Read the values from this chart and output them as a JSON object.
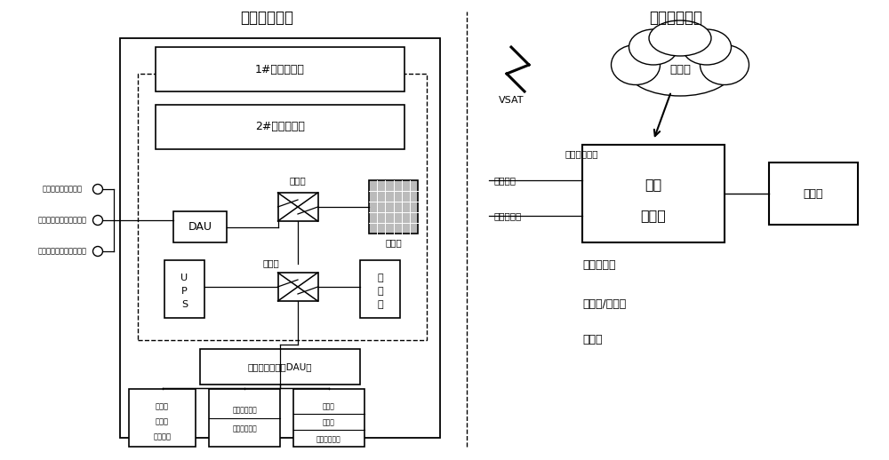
{
  "title_left": "船端数据中心",
  "title_right": "岸端数据中心",
  "bg_color": "#ffffff",
  "fig_width": 10.0,
  "fig_height": 5.18,
  "devices": [
    "船载航程数据记录仪",
    "电子海图信息与显示系统",
    "全球海上遇险与安全系统"
  ],
  "server1": "1#数据服务器",
  "server2": "2#数据服务器",
  "dau_label": "DAU",
  "switch_label": "交换机",
  "firewall_label": "防火墙",
  "ups_labels": [
    "U",
    "P",
    "S"
  ],
  "workstation_labels": [
    "工",
    "作",
    "站"
  ],
  "dau_bottom_label": "数据采集单元（DAU）",
  "box1_labels": [
    "开关量",
    "报警量",
    "机舱设备"
  ],
  "box2_labels": [
    "船体监测设备",
    "货舱监控设备"
  ],
  "box3_labels": [
    "流量计",
    "扭矩仪",
    "液位测量系统"
  ],
  "vsat_label": "VSAT",
  "internet_label": "因特网",
  "dac_label": "数据采集单元",
  "server_room_labels": [
    "机房",
    "服务器"
  ],
  "display_label": "显示屏",
  "op_data_label": "运营数据",
  "port_ctrl_label": "进出港控制",
  "self_server_label": "自建服务器",
  "public_cloud_label": "公有云/混合云",
  "private_cloud_label": "私有云"
}
